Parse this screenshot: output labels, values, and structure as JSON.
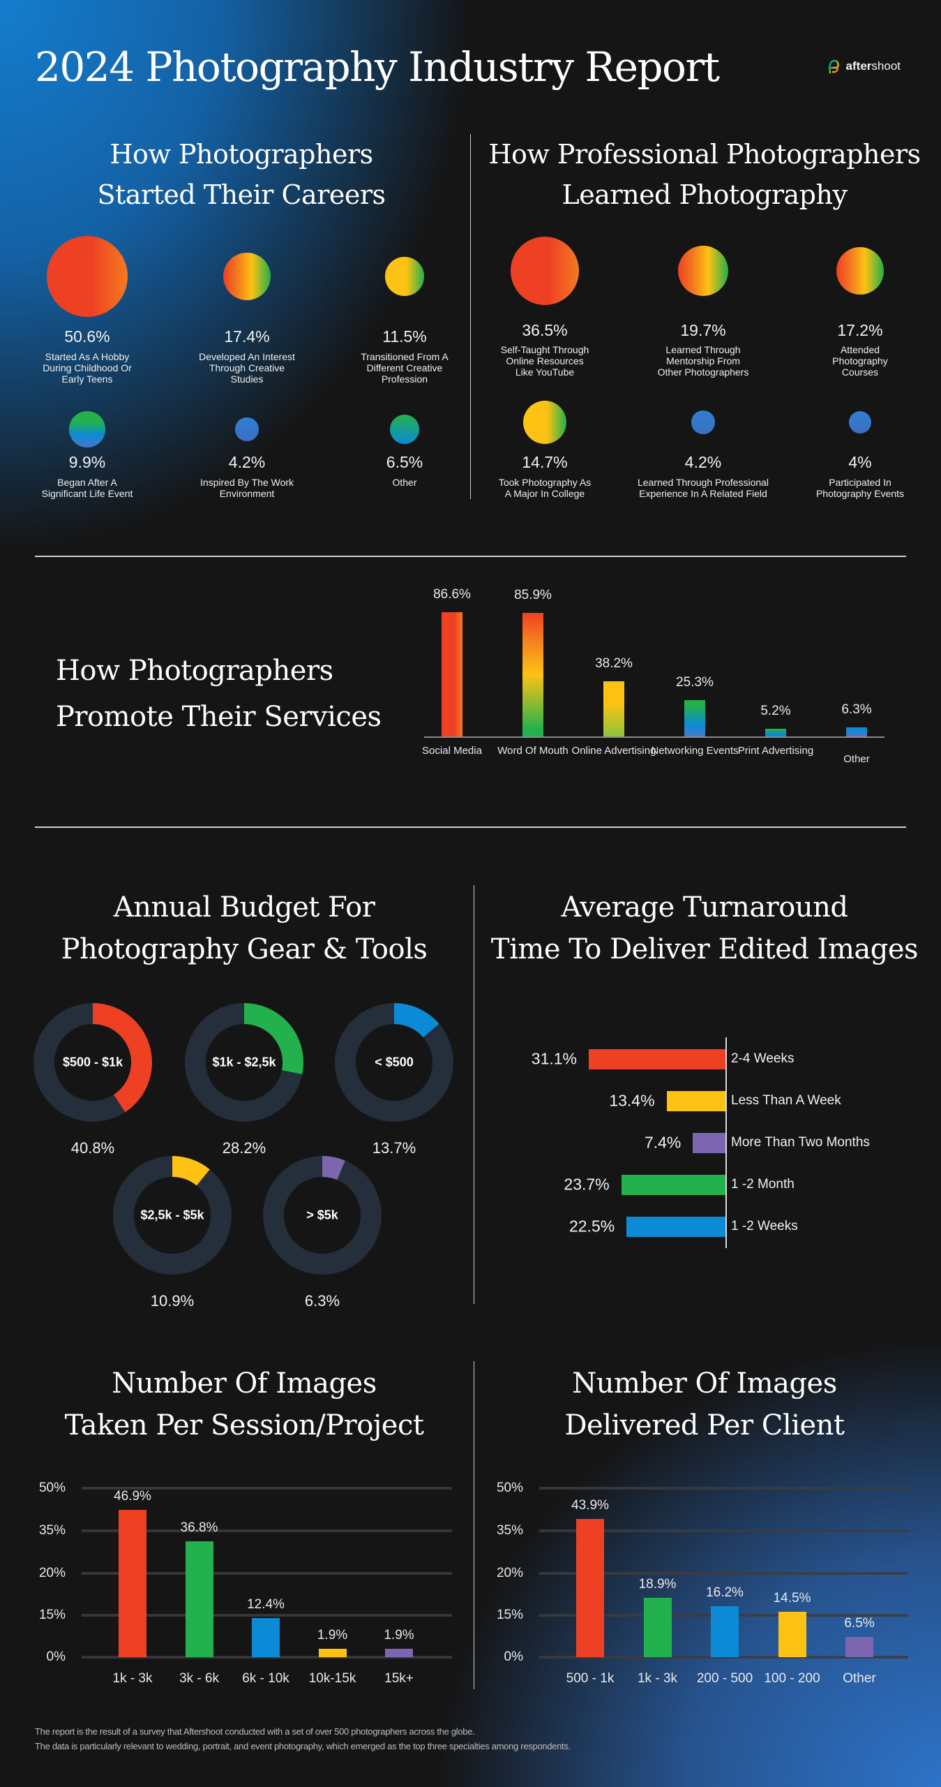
{
  "header": {
    "title": "2024 Photography Industry Report",
    "logo_bold": "after",
    "logo_rest": "shoot",
    "logo_icon": "aftershoot-logo-icon"
  },
  "colors": {
    "red": "#ee4023",
    "orange": "#f47a20",
    "yellow": "#fdc213",
    "green": "#22b14c",
    "blue": "#0d8ad6",
    "purple": "#7d66b0",
    "ring_track": "#252e3b"
  },
  "careers": {
    "title_line1": "How Photographers",
    "title_line2": "Started Their Careers",
    "items": [
      {
        "value": 50.6,
        "pct": "50.6%",
        "label": "Started As A Hobby\nDuring Childhood Or\nEarly Teens"
      },
      {
        "value": 17.4,
        "pct": "17.4%",
        "label": "Developed An Interest\nThrough Creative\nStudies"
      },
      {
        "value": 11.5,
        "pct": "11.5%",
        "label": "Transitioned From A\nDifferent Creative\nProfession"
      },
      {
        "value": 9.9,
        "pct": "9.9%",
        "label": "Began After A\nSignificant Life Event"
      },
      {
        "value": 4.2,
        "pct": "4.2%",
        "label": "Inspired By The Work\nEnvironment"
      },
      {
        "value": 6.5,
        "pct": "6.5%",
        "label": "Other"
      }
    ]
  },
  "learned": {
    "title_line1": "How Professional Photographers",
    "title_line2": "Learned Photography",
    "items": [
      {
        "value": 36.5,
        "pct": "36.5%",
        "label": "Self-Taught Through\nOnline Resources\nLike YouTube"
      },
      {
        "value": 19.7,
        "pct": "19.7%",
        "label": "Learned Through\nMentorship From\nOther Photographers"
      },
      {
        "value": 17.2,
        "pct": "17.2%",
        "label": "Attended\nPhotography\nCourses"
      },
      {
        "value": 14.7,
        "pct": "14.7%",
        "label": "Took Photography As\nA Major In College"
      },
      {
        "value": 4.2,
        "pct": "4.2%",
        "label": "Learned Through Professional\nExperience In A Related Field"
      },
      {
        "value": 4,
        "pct": "4%",
        "label": "Participated In\nPhotography Events"
      }
    ]
  },
  "chart_data": [
    {
      "id": "promote",
      "type": "bar",
      "title": "How Photographers Promote Their Services",
      "title_line1": "How Photographers",
      "title_line2": "Promote Their Services",
      "categories": [
        "Social\nMedia",
        "Word Of\nMouth",
        "Online\nAdvertising",
        "Networking\nEvents",
        "Print\nAdvertising",
        "Other"
      ],
      "values": [
        86.6,
        85.9,
        38.2,
        25.3,
        5.2,
        6.3
      ],
      "labels": [
        "86.6%",
        "85.9%",
        "38.2%",
        "25.3%",
        "5.2%",
        "6.3%"
      ],
      "ylim": [
        0,
        100
      ],
      "grid": false,
      "xlabel": "",
      "ylabel": ""
    },
    {
      "id": "budget",
      "type": "pie",
      "title": "Annual Budget For Photography Gear & Tools",
      "title_line1": "Annual Budget For",
      "title_line2": "Photography Gear & Tools",
      "categories": [
        "$500 - $1k",
        "$1k - $2,5k",
        "< $500",
        "$2,5k - $5k",
        "> $5k"
      ],
      "values": [
        40.8,
        28.2,
        13.7,
        10.9,
        6.3
      ],
      "labels": [
        "40.8%",
        "28.2%",
        "13.7%",
        "10.9%",
        "6.3%"
      ],
      "colors": [
        "#ee4023",
        "#22b14c",
        "#0d8ad6",
        "#fdc213",
        "#7d66b0"
      ]
    },
    {
      "id": "turnaround",
      "type": "bar",
      "orientation": "horizontal",
      "title": "Average Turnaround Time To Deliver Edited Images",
      "title_line1": "Average Turnaround",
      "title_line2": "Time To Deliver Edited Images",
      "categories": [
        "2-4 Weeks",
        "Less Than A Week",
        "More Than Two Months",
        "1 -2 Month",
        "1 -2 Weeks"
      ],
      "values": [
        31.1,
        13.4,
        7.4,
        23.7,
        22.5
      ],
      "labels": [
        "31.1%",
        "13.4%",
        "7.4%",
        "23.7%",
        "22.5%"
      ],
      "colors": [
        "#ee4023",
        "#fdc213",
        "#7d66b0",
        "#22b14c",
        "#0d8ad6"
      ]
    },
    {
      "id": "taken",
      "type": "bar",
      "title": "Number Of Images Taken Per Session/Project",
      "title_line1": "Number Of Images",
      "title_line2": "Taken Per Session/Project",
      "categories": [
        "1k - 3k",
        "3k - 6k",
        "6k - 10k",
        "10k-15k",
        "15k+"
      ],
      "values": [
        46.9,
        36.8,
        12.4,
        1.9,
        1.9
      ],
      "labels": [
        "46.9%",
        "36.8%",
        "12.4%",
        "1.9%",
        "1.9%"
      ],
      "colors": [
        "#ee4023",
        "#22b14c",
        "#0d8ad6",
        "#fdc213",
        "#7d66b0"
      ],
      "yticks": [
        "50%",
        "35%",
        "20%",
        "15%",
        "0%"
      ],
      "grid": true
    },
    {
      "id": "delivered",
      "type": "bar",
      "title": "Number Of Images Delivered Per Client",
      "title_line1": "Number Of Images",
      "title_line2": "Delivered Per Client",
      "categories": [
        "500 - 1k",
        "1k - 3k",
        "200 - 500",
        "100 - 200",
        "Other"
      ],
      "values": [
        43.9,
        18.9,
        16.2,
        14.5,
        6.5
      ],
      "labels": [
        "43.9%",
        "18.9%",
        "16.2%",
        "14.5%",
        "6.5%"
      ],
      "colors": [
        "#ee4023",
        "#22b14c",
        "#0d8ad6",
        "#fdc213",
        "#7d66b0"
      ],
      "yticks": [
        "50%",
        "35%",
        "20%",
        "15%",
        "0%"
      ],
      "grid": true
    }
  ],
  "footer": {
    "line1": "The report is the result of a survey that Aftershoot conducted with a set of over 500 photographers across the globe.",
    "line2": "The data is particularly relevant to wedding, portrait, and event photography, which emerged as the top three specialties among respondents."
  }
}
